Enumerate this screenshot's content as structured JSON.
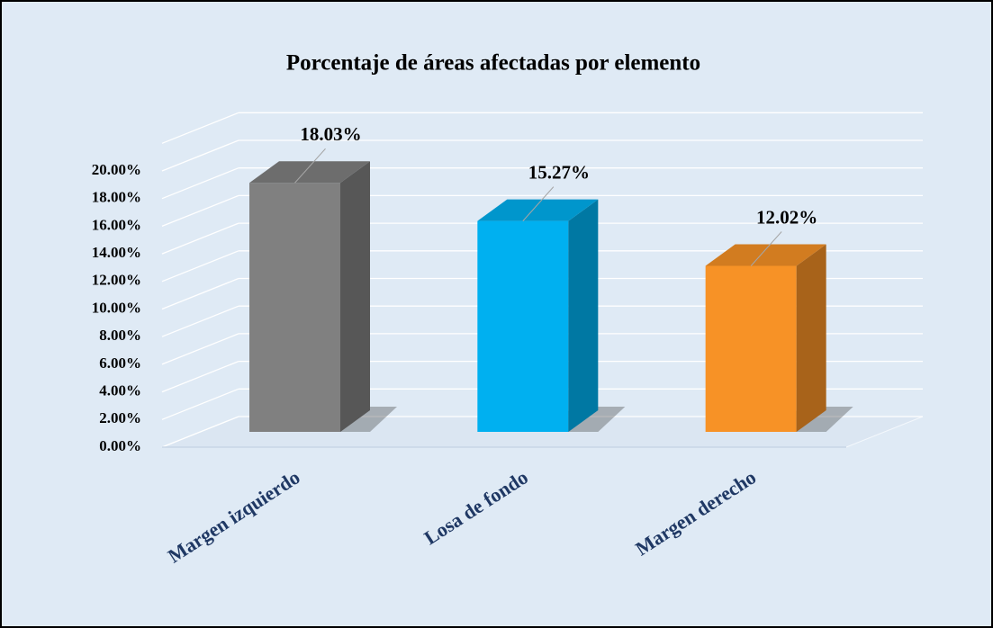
{
  "chart_data": {
    "type": "bar3d",
    "title": "Porcentaje de áreas afectadas por elemento",
    "categories": [
      "Margen izquierdo",
      "Losa de fondo",
      "Margen derecho"
    ],
    "values": [
      18.03,
      15.27,
      12.02
    ],
    "value_labels": [
      "18.03%",
      "15.27%",
      "12.02%"
    ],
    "colors": [
      "#808080",
      "#00b0f0",
      "#f79226"
    ],
    "ylim": [
      0,
      22
    ],
    "yticks": [
      {
        "value": 0,
        "label": "0.00%"
      },
      {
        "value": 2,
        "label": "2.00%"
      },
      {
        "value": 4,
        "label": "4.00%"
      },
      {
        "value": 6,
        "label": "6.00%"
      },
      {
        "value": 8,
        "label": "8.00%"
      },
      {
        "value": 10,
        "label": "10.00%"
      },
      {
        "value": 12,
        "label": "12.00%"
      },
      {
        "value": 14,
        "label": "14.00%"
      },
      {
        "value": 16,
        "label": "16.00%"
      },
      {
        "value": 18,
        "label": "18.00%"
      },
      {
        "value": 20,
        "label": "20.00%"
      }
    ],
    "grid": true
  }
}
